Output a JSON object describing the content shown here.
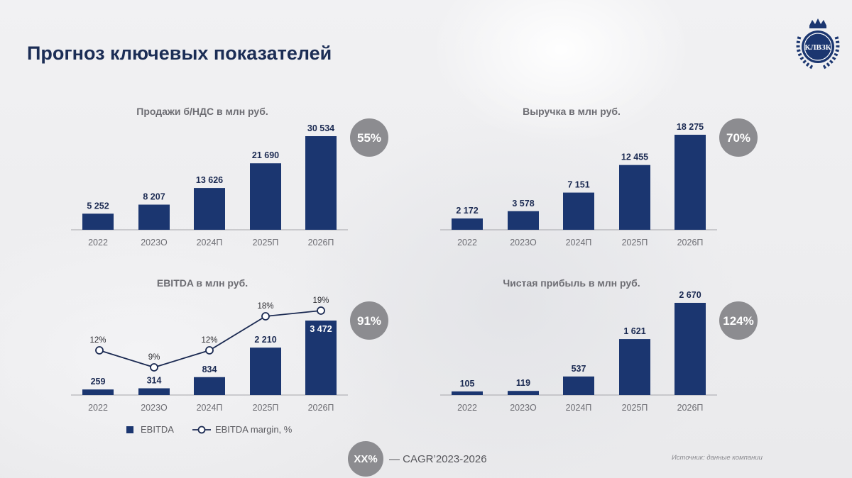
{
  "page": {
    "title": "Прогноз ключевых показателей",
    "logo_text": "КЛВЗК",
    "footer_badge": "XX%",
    "footer_text": "— CAGR’2023-2026",
    "source": "Источник: данные компании",
    "legend_bar": "EBITDA",
    "legend_line": "EBITDA margin, %"
  },
  "colors": {
    "bar": "#1b3670",
    "title": "#1b2d55",
    "badge": "#8c8c90"
  },
  "chart_data": [
    {
      "type": "bar",
      "title": "Продажи б/НДС в млн руб.",
      "categories": [
        "2022",
        "2023О",
        "2024П",
        "2025П",
        "2026П"
      ],
      "values": [
        5252,
        8207,
        13626,
        21690,
        30534
      ],
      "labels": [
        "5 252",
        "8 207",
        "13 626",
        "21 690",
        "30 534"
      ],
      "cagr": "55%"
    },
    {
      "type": "bar",
      "title": "Выручка в млн руб.",
      "categories": [
        "2022",
        "2023О",
        "2024П",
        "2025П",
        "2026П"
      ],
      "values": [
        2172,
        3578,
        7151,
        12455,
        18275
      ],
      "labels": [
        "2 172",
        "3 578",
        "7 151",
        "12 455",
        "18 275"
      ],
      "cagr": "70%"
    },
    {
      "type": "bar",
      "title": "EBITDA в млн руб.",
      "categories": [
        "2022",
        "2023О",
        "2024П",
        "2025П",
        "2026П"
      ],
      "values": [
        259,
        314,
        834,
        2210,
        3472
      ],
      "labels": [
        "259",
        "314",
        "834",
        "2 210",
        "3 472"
      ],
      "cagr": "91%",
      "series": [
        {
          "name": "EBITDA",
          "values": [
            259,
            314,
            834,
            2210,
            3472
          ]
        },
        {
          "name": "EBITDA margin, %",
          "values": [
            12,
            9,
            12,
            18,
            19
          ],
          "labels": [
            "12%",
            "9%",
            "12%",
            "18%",
            "19%"
          ]
        }
      ],
      "legend": "bottom"
    },
    {
      "type": "bar",
      "title": "Чистая прибыль в млн руб.",
      "categories": [
        "2022",
        "2023О",
        "2024П",
        "2025П",
        "2026П"
      ],
      "values": [
        105,
        119,
        537,
        1621,
        2670
      ],
      "labels": [
        "105",
        "119",
        "537",
        "1 621",
        "2 670"
      ],
      "cagr": "124%"
    }
  ]
}
